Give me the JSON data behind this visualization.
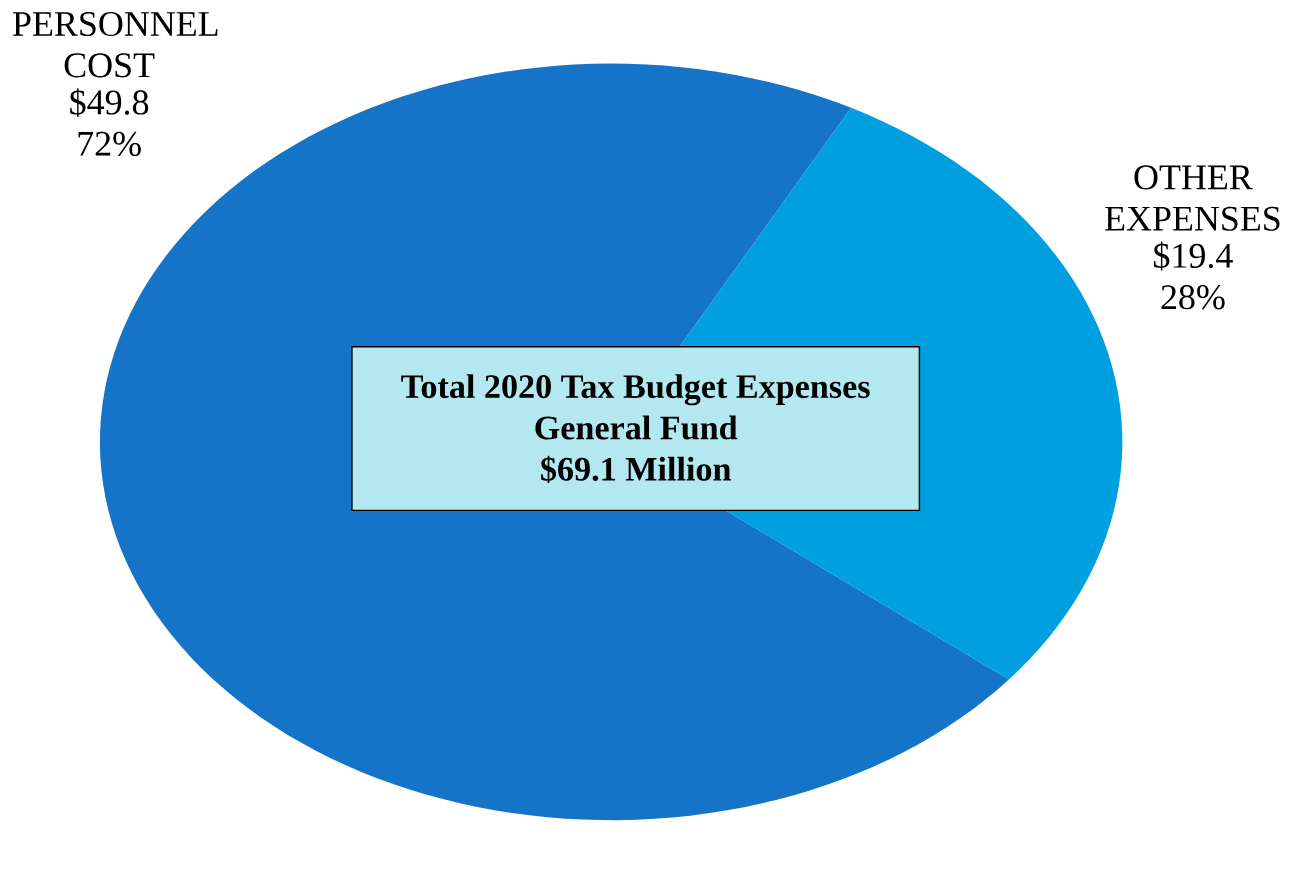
{
  "chart_data": {
    "type": "pie",
    "title": "Total 2020  Tax Budget Expenses",
    "subtitle": "General Fund",
    "annotations": [
      "$69.1 Million"
    ],
    "categories": [
      "PERSONNEL COST",
      "OTHER EXPENSES"
    ],
    "values": [
      49.8,
      19.4
    ],
    "value_labels": [
      "$49.8 72%",
      "$19.4 28%"
    ],
    "colors": [
      "#1573c8",
      "#009fdf"
    ]
  }
}
